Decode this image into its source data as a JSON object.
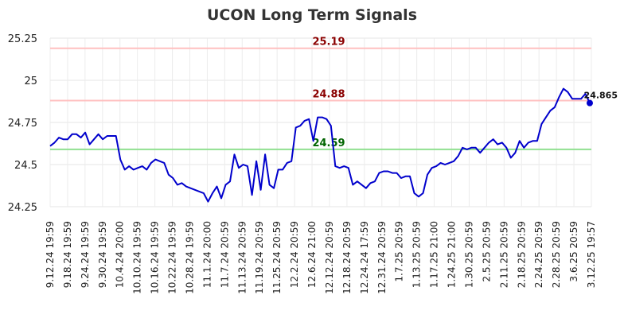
{
  "chart_data": {
    "type": "line",
    "title": "UCON Long Term Signals",
    "xlabel": "",
    "ylabel": "",
    "ylim": [
      24.25,
      25.25
    ],
    "yticks": [
      24.25,
      24.5,
      24.75,
      25,
      25.25
    ],
    "ytick_labels": [
      "24.25",
      "24.5",
      "24.75",
      "25",
      "25.25"
    ],
    "x_tick_labels": [
      "9.12.24 19:59",
      "9.18.24 19:59",
      "9.24.24 19:59",
      "9.30.24 19:59",
      "10.4.24 20:00",
      "10.10.24 19:59",
      "10.16.24 19:59",
      "10.22.24 19:59",
      "10.28.24 19:59",
      "11.1.24 20:00",
      "11.7.24 20:59",
      "11.13.24 20:59",
      "11.19.24 20:59",
      "11.25.24 20:59",
      "12.2.24 20:59",
      "12.6.24 21:00",
      "12.12.24 20:59",
      "12.18.24 20:59",
      "12.24.24 17:59",
      "12.31.24 20:59",
      "1.7.25 20:59",
      "1.13.25 20:59",
      "1.17.25 21:00",
      "1.24.25 21:00",
      "1.30.25 20:59",
      "2.5.25 20:59",
      "2.11.25 20:59",
      "2.18.25 20:59",
      "2.24.25 20:59",
      "2.28.25 20:59",
      "3.6.25 20:59",
      "3.12.25 19:57"
    ],
    "grid": true,
    "line_color": "#0000cc",
    "series": [
      {
        "values": [
          24.61,
          24.63,
          24.66,
          24.65,
          24.65,
          24.68,
          24.68,
          24.66,
          24.69,
          24.62,
          24.65,
          24.68,
          24.65,
          24.67,
          24.67,
          24.67,
          24.53,
          24.47,
          24.49,
          24.47,
          24.48,
          24.49,
          24.47,
          24.51,
          24.53,
          24.52,
          24.51,
          24.44,
          24.42,
          24.38,
          24.39,
          24.37,
          24.36,
          24.35,
          24.34,
          24.33,
          24.28,
          24.33,
          24.37,
          24.3,
          24.38,
          24.4,
          24.56,
          24.48,
          24.5,
          24.49,
          24.32,
          24.52,
          24.35,
          24.56,
          24.38,
          24.36,
          24.47,
          24.47,
          24.51,
          24.52,
          24.72,
          24.73,
          24.76,
          24.77,
          24.64,
          24.78,
          24.78,
          24.77,
          24.73,
          24.49,
          24.48,
          24.49,
          24.48,
          24.38,
          24.4,
          24.38,
          24.36,
          24.39,
          24.4,
          24.45,
          24.46,
          24.46,
          24.45,
          24.45,
          24.42,
          24.43,
          24.43,
          24.33,
          24.31,
          24.33,
          24.44,
          24.48,
          24.49,
          24.51,
          24.5,
          24.51,
          24.52,
          24.55,
          24.6,
          24.59,
          24.6,
          24.6,
          24.57,
          24.6,
          24.63,
          24.65,
          24.62,
          24.63,
          24.6,
          24.54,
          24.57,
          24.64,
          24.6,
          24.63,
          24.64,
          24.64,
          24.74,
          24.78,
          24.82,
          24.84,
          24.9,
          24.95,
          24.93,
          24.89,
          24.89,
          24.89,
          24.92,
          24.865
        ]
      }
    ],
    "levels": [
      {
        "value": 25.19,
        "label": "25.19",
        "line_color": "#ffc0c0",
        "text_color": "#8b0000"
      },
      {
        "value": 24.88,
        "label": "24.88",
        "line_color": "#ffc0c0",
        "text_color": "#8b0000"
      },
      {
        "value": 24.59,
        "label": "24.59",
        "line_color": "#90e090",
        "text_color": "#006400"
      }
    ],
    "last_point": {
      "value": 24.865,
      "label": "24.865",
      "marker_color": "#0000cc"
    }
  }
}
